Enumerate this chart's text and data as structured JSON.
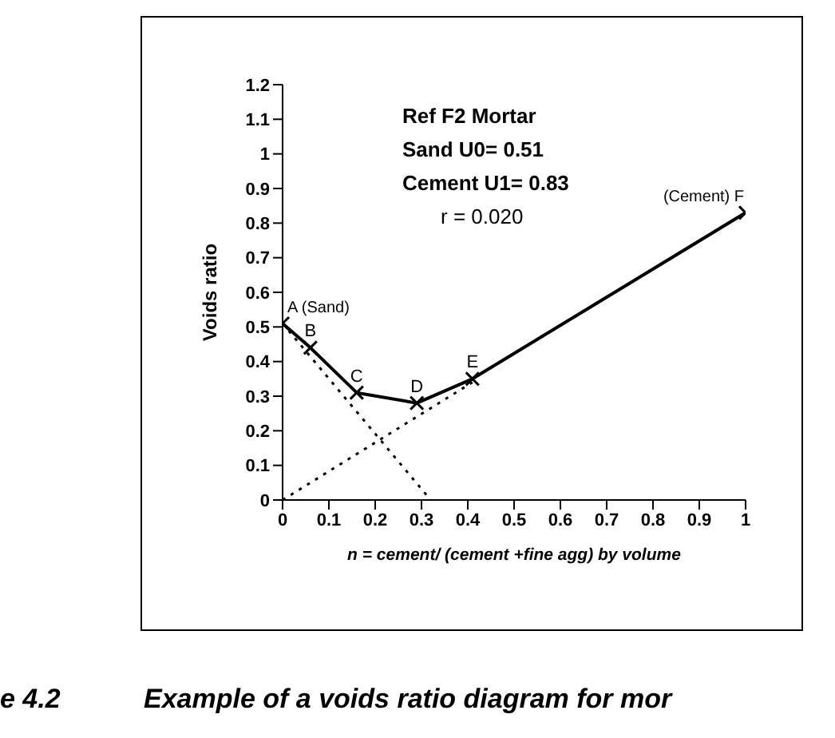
{
  "chart_data": {
    "type": "line",
    "xlabel": "n = cement/ (cement +fine agg) by volume",
    "ylabel": "Voids ratio",
    "xlim": [
      0,
      1
    ],
    "xticks": [
      0,
      0.1,
      0.2,
      0.3,
      0.4,
      0.5,
      0.6,
      0.7,
      0.8,
      0.9,
      1
    ],
    "ylim": [
      0,
      1.2
    ],
    "yticks": [
      0,
      0.1,
      0.2,
      0.3,
      0.4,
      0.5,
      0.6,
      0.7,
      0.8,
      0.9,
      1,
      1.1,
      1.2
    ],
    "series": [
      {
        "color": "#000000",
        "x": [
          0,
          0.06,
          0.16,
          0.29,
          0.41,
          1
        ],
        "values": [
          0.51,
          0.44,
          0.31,
          0.28,
          0.35,
          0.83
        ],
        "marker": "cross",
        "line_style": "solid"
      },
      {
        "color": "#000000",
        "x": [
          0,
          0.32
        ],
        "values": [
          0.51,
          0
        ],
        "marker": "none",
        "line_style": "dotted"
      },
      {
        "color": "#000000",
        "x": [
          0,
          0.41
        ],
        "values": [
          0,
          0.34
        ],
        "marker": "none",
        "line_style": "dotted"
      }
    ],
    "annotations": [
      {
        "text": "A (Sand)",
        "x": 0,
        "y": 0.51
      },
      {
        "text": "B",
        "x": 0.06,
        "y": 0.44
      },
      {
        "text": "C",
        "x": 0.16,
        "y": 0.31
      },
      {
        "text": "D",
        "x": 0.29,
        "y": 0.28
      },
      {
        "text": "E",
        "x": 0.41,
        "y": 0.35
      },
      {
        "text": "(Cement) F",
        "x": 1,
        "y": 0.83
      },
      "Ref F2 Mortar",
      "Sand U0= 0.51",
      "Cement U1= 0.83",
      "r = 0.020",
      "e 4.2",
      "Example of a voids ratio diagram for mor"
    ]
  }
}
